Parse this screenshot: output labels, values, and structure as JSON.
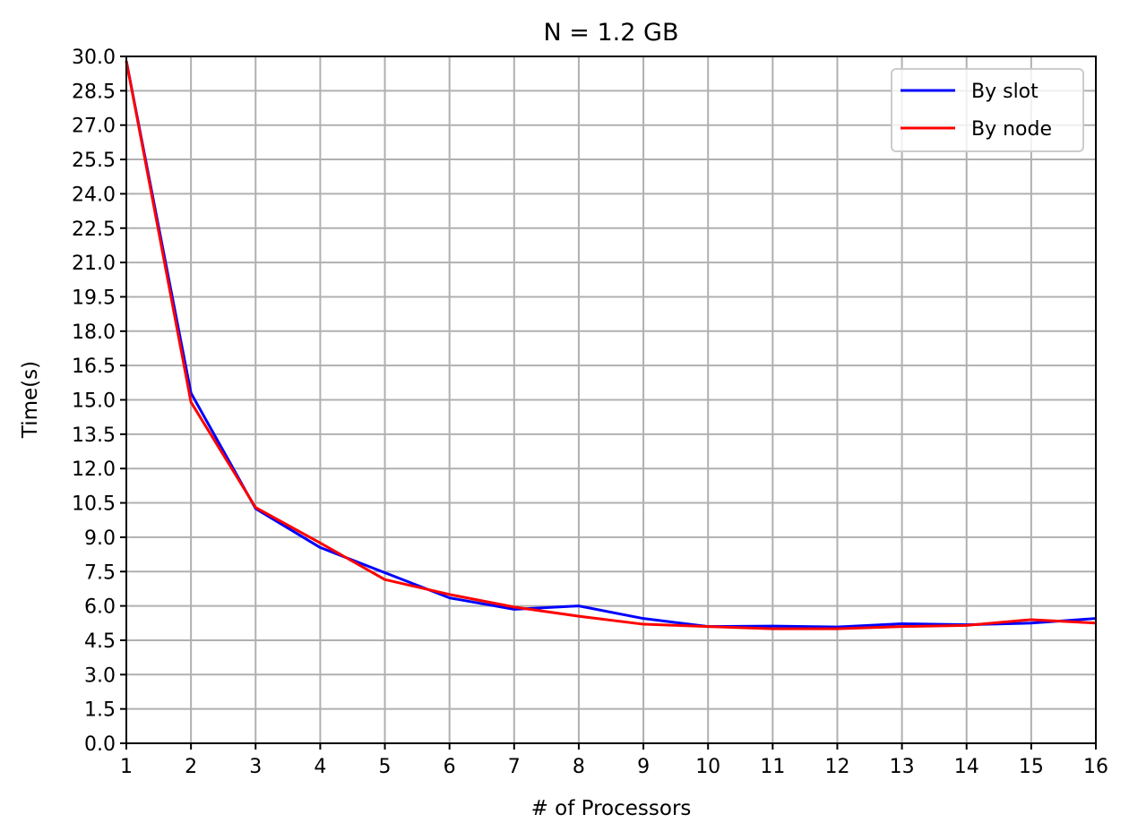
{
  "chart_data": {
    "type": "line",
    "title": "N = 1.2 GB",
    "xlabel": "# of Processors",
    "ylabel": "Time(s)",
    "xlim": [
      1,
      16
    ],
    "ylim": [
      0,
      30
    ],
    "xticks": [
      1,
      2,
      3,
      4,
      5,
      6,
      7,
      8,
      9,
      10,
      11,
      12,
      13,
      14,
      15,
      16
    ],
    "yticks": [
      0,
      1.5,
      3,
      4.5,
      6,
      7.5,
      9,
      10.5,
      12,
      13.5,
      15,
      16.5,
      18,
      19.5,
      21,
      22.5,
      24,
      25.5,
      27,
      28.5,
      30
    ],
    "ytick_labels": [
      "0.0",
      "1.5",
      "3.0",
      "4.5",
      "6.0",
      "7.5",
      "9.0",
      "10.5",
      "12.0",
      "13.5",
      "15.0",
      "16.5",
      "18.0",
      "19.5",
      "21.0",
      "22.5",
      "24.0",
      "25.5",
      "27.0",
      "28.5",
      "30.0"
    ],
    "grid": true,
    "legend_position": "top-right",
    "x": [
      1,
      2,
      3,
      4,
      5,
      6,
      7,
      8,
      9,
      10,
      11,
      12,
      13,
      14,
      15,
      16
    ],
    "series": [
      {
        "name": "By slot",
        "color": "#0000ff",
        "values": [
          29.8,
          15.3,
          10.25,
          8.55,
          7.45,
          6.35,
          5.85,
          6.0,
          5.45,
          5.1,
          5.12,
          5.08,
          5.22,
          5.18,
          5.25,
          5.45
        ]
      },
      {
        "name": "By node",
        "color": "#ff0000",
        "values": [
          29.8,
          14.9,
          10.3,
          8.75,
          7.15,
          6.5,
          5.95,
          5.55,
          5.2,
          5.1,
          5.0,
          5.0,
          5.1,
          5.15,
          5.4,
          5.25
        ]
      }
    ]
  }
}
